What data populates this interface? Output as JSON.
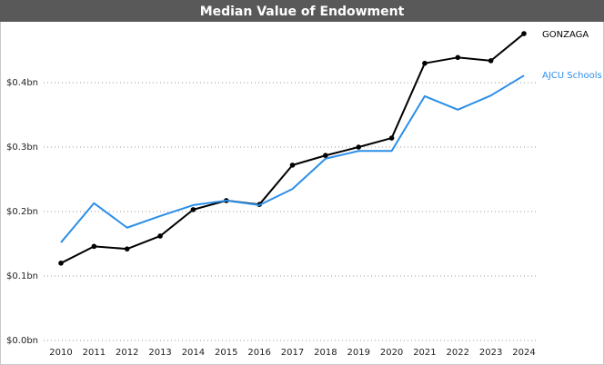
{
  "chart_data": {
    "type": "line",
    "title": "Median Value of Endowment",
    "categories": [
      "2010",
      "2011",
      "2012",
      "2013",
      "2014",
      "2015",
      "2016",
      "2017",
      "2018",
      "2019",
      "2020",
      "2021",
      "2022",
      "2023",
      "2024"
    ],
    "series": [
      {
        "name": "GONZAGA",
        "color": "#000000",
        "markers": true,
        "values": [
          0.12,
          0.146,
          0.142,
          0.162,
          0.203,
          0.217,
          0.211,
          0.272,
          0.287,
          0.3,
          0.314,
          0.43,
          0.439,
          0.434,
          0.476
        ]
      },
      {
        "name": "AJCU Schools",
        "color": "#2b8ee8",
        "markers": false,
        "values": [
          0.152,
          0.213,
          0.175,
          0.193,
          0.21,
          0.217,
          0.21,
          0.235,
          0.282,
          0.294,
          0.294,
          0.379,
          0.358,
          0.38,
          0.411
        ]
      }
    ],
    "ylim": [
      0,
      0.5
    ],
    "yticks": [
      {
        "value": 0,
        "label": "$0.0bn"
      },
      {
        "value": 0.1,
        "label": "$0.1bn"
      },
      {
        "value": 0.2,
        "label": "$0.2bn"
      },
      {
        "value": 0.3,
        "label": "$0.3bn"
      },
      {
        "value": 0.4,
        "label": "$0.4bn"
      }
    ],
    "grid": true
  }
}
